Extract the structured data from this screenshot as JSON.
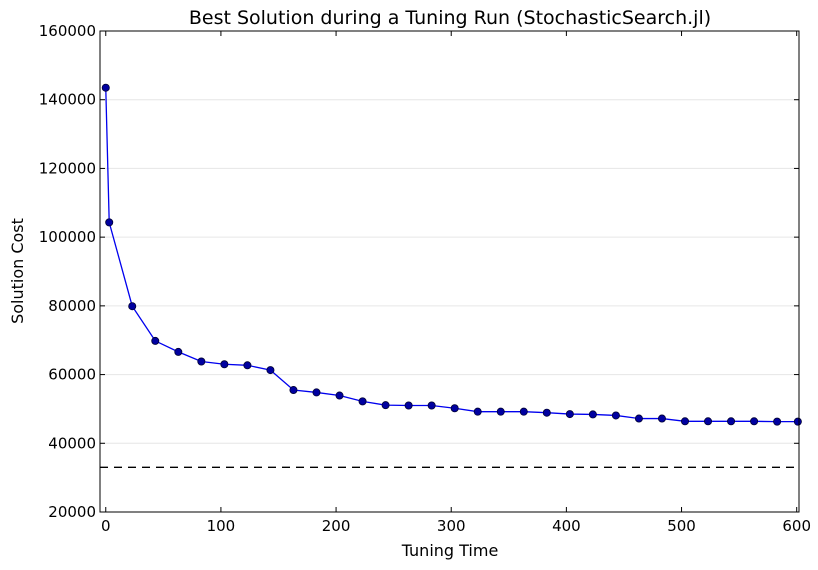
{
  "chart_data": {
    "type": "line",
    "title": "Best Solution during a Tuning Run (StochasticSearch.jl)",
    "xlabel": "Tuning Time",
    "ylabel": "Solution Cost",
    "xlim": [
      -5,
      602
    ],
    "ylim": [
      20000,
      160000
    ],
    "xticks": [
      0,
      100,
      200,
      300,
      400,
      500,
      600
    ],
    "yticks": [
      20000,
      40000,
      60000,
      80000,
      100000,
      120000,
      140000,
      160000
    ],
    "grid": true,
    "series": [
      {
        "color": "#0000ee",
        "marker": "circle",
        "x": [
          0,
          3,
          23,
          43,
          63,
          83,
          103,
          123,
          143,
          163,
          183,
          203,
          223,
          243,
          263,
          283,
          303,
          323,
          343,
          363,
          383,
          403,
          423,
          443,
          463,
          483,
          503,
          523,
          543,
          563,
          583,
          601
        ],
        "y": [
          143500,
          104300,
          79900,
          69800,
          66600,
          63800,
          63000,
          62700,
          61300,
          55500,
          54800,
          53900,
          52200,
          51100,
          51000,
          51000,
          50200,
          49200,
          49200,
          49200,
          48900,
          48500,
          48400,
          48100,
          47200,
          47200,
          46400,
          46400,
          46400,
          46400,
          46300,
          46300
        ]
      }
    ],
    "reference_line": {
      "y": 33000,
      "style": "dashed",
      "color": "#000000"
    }
  }
}
